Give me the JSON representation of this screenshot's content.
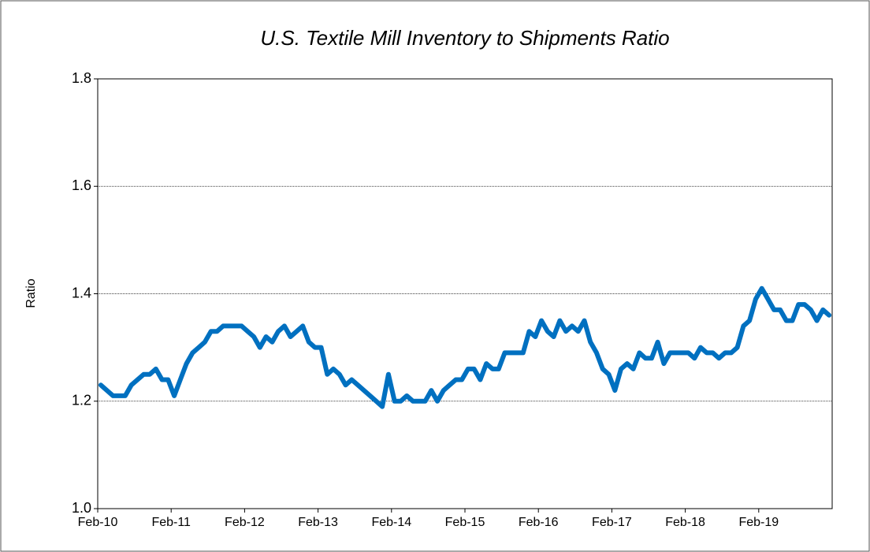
{
  "chart_data": {
    "type": "line",
    "title": "U.S. Textile Mill Inventory to Shipments Ratio",
    "y_label": "Ratio",
    "categories": [
      "Feb-10",
      null,
      null,
      null,
      null,
      null,
      null,
      null,
      null,
      null,
      null,
      null,
      "Feb-11",
      null,
      null,
      null,
      null,
      null,
      null,
      null,
      null,
      null,
      null,
      null,
      "Feb-12",
      null,
      null,
      null,
      null,
      null,
      null,
      null,
      null,
      null,
      null,
      null,
      "Feb-13",
      null,
      null,
      null,
      null,
      null,
      null,
      null,
      null,
      null,
      null,
      null,
      "Feb-14",
      null,
      null,
      null,
      null,
      null,
      null,
      null,
      null,
      null,
      null,
      null,
      "Feb-15",
      null,
      null,
      null,
      null,
      null,
      null,
      null,
      null,
      null,
      null,
      null,
      "Feb-16",
      null,
      null,
      null,
      null,
      null,
      null,
      null,
      null,
      null,
      null,
      null,
      "Feb-17",
      null,
      null,
      null,
      null,
      null,
      null,
      null,
      null,
      null,
      null,
      null,
      "Feb-18",
      null,
      null,
      null,
      null,
      null,
      null,
      null,
      null,
      null,
      null,
      null,
      "Feb-19",
      null,
      null,
      null,
      null,
      null,
      null,
      null,
      null,
      null,
      null,
      null
    ],
    "series": [
      {
        "name": "Ratio",
        "color": "#0070c0",
        "values": [
          1.23,
          1.22,
          1.21,
          1.21,
          1.21,
          1.23,
          1.24,
          1.25,
          1.25,
          1.26,
          1.24,
          1.24,
          1.21,
          1.24,
          1.27,
          1.29,
          1.3,
          1.31,
          1.33,
          1.33,
          1.34,
          1.34,
          1.34,
          1.34,
          1.33,
          1.32,
          1.3,
          1.32,
          1.31,
          1.33,
          1.34,
          1.32,
          1.33,
          1.34,
          1.31,
          1.3,
          1.3,
          1.25,
          1.26,
          1.25,
          1.23,
          1.24,
          1.23,
          1.22,
          1.21,
          1.2,
          1.19,
          1.25,
          1.2,
          1.2,
          1.21,
          1.2,
          1.2,
          1.2,
          1.22,
          1.2,
          1.22,
          1.23,
          1.24,
          1.24,
          1.26,
          1.26,
          1.24,
          1.27,
          1.26,
          1.26,
          1.29,
          1.29,
          1.29,
          1.29,
          1.33,
          1.32,
          1.35,
          1.33,
          1.32,
          1.35,
          1.33,
          1.34,
          1.33,
          1.35,
          1.31,
          1.29,
          1.26,
          1.25,
          1.22,
          1.26,
          1.27,
          1.26,
          1.29,
          1.28,
          1.28,
          1.31,
          1.27,
          1.29,
          1.29,
          1.29,
          1.29,
          1.28,
          1.3,
          1.29,
          1.29,
          1.28,
          1.29,
          1.29,
          1.3,
          1.34,
          1.35,
          1.39,
          1.41,
          1.39,
          1.37,
          1.37,
          1.35,
          1.35,
          1.38,
          1.38,
          1.37,
          1.35,
          1.37,
          1.36
        ]
      }
    ],
    "ylim": [
      1.0,
      1.8
    ],
    "yticks": [
      {
        "value": 1,
        "label": "1.0"
      },
      1.2,
      1.4,
      1.6,
      1.8
    ],
    "grid": true
  }
}
